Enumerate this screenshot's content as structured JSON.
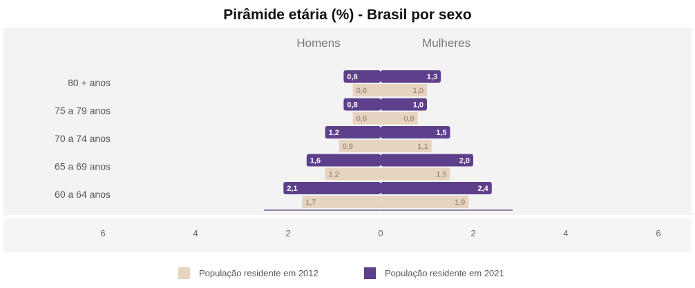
{
  "chart_data": {
    "type": "bar",
    "orientation": "horizontal-population-pyramid",
    "title": "Pirâmide etária (%) - Brasil por sexo",
    "left_header": "Homens",
    "right_header": "Mulheres",
    "categories": [
      "80 + anos",
      "75 a 79 anos",
      "70 a 74 anos",
      "65 a 69 anos",
      "60 a 64 anos"
    ],
    "x_ticks": [
      "6",
      "4",
      "2",
      "0",
      "2",
      "4",
      "6"
    ],
    "xlim": [
      -6,
      6
    ],
    "series": [
      {
        "name": "População residente em 2021",
        "color": "#5d3f8b",
        "homens": [
          0.8,
          0.8,
          1.2,
          1.6,
          2.1
        ],
        "mulheres": [
          1.3,
          1.0,
          1.5,
          2.0,
          2.4
        ],
        "homens_labels": [
          "0,8",
          "0,8",
          "1,2",
          "1,6",
          "2,1"
        ],
        "mulheres_labels": [
          "1,3",
          "1,0",
          "1,5",
          "2,0",
          "2,4"
        ]
      },
      {
        "name": "População residente em 2012",
        "color": "#e6d3c0",
        "homens": [
          0.6,
          0.6,
          0.9,
          1.2,
          1.7
        ],
        "mulheres": [
          1.0,
          0.8,
          1.1,
          1.5,
          1.9
        ],
        "homens_labels": [
          "0,6",
          "0,6",
          "0,9",
          "1,2",
          "1,7"
        ],
        "mulheres_labels": [
          "1,0",
          "0,8",
          "1,1",
          "1,5",
          "1,9"
        ]
      }
    ],
    "legend": {
      "placement": "bottom",
      "items": [
        "População residente em 2012",
        "População residente em 2021"
      ]
    },
    "colors": {
      "plot_background": "#f3f3f3",
      "axis_band": "#f5f5f5"
    }
  }
}
